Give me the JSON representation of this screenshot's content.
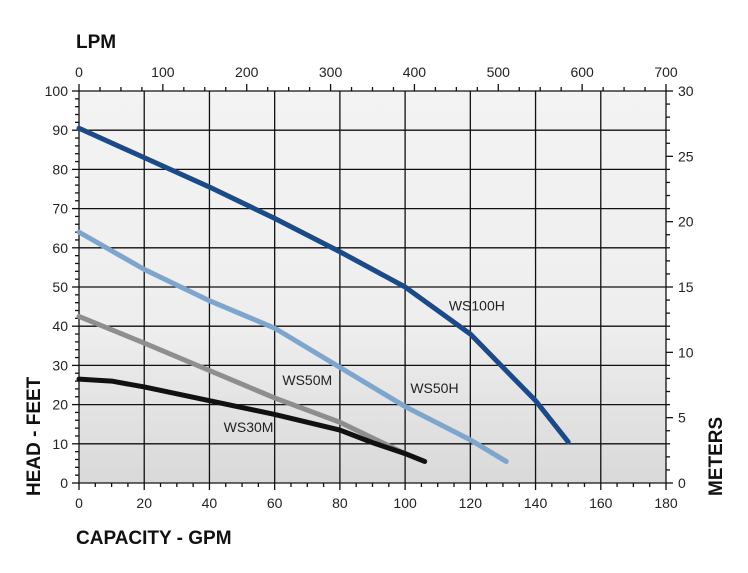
{
  "chart_data": {
    "type": "line",
    "title": "",
    "xlabel": "CAPACITY - GPM",
    "x2label": "LPM",
    "ylabel": "HEAD - FEET",
    "y2label": "METERS",
    "xlim": [
      0,
      180
    ],
    "ylim": [
      0,
      100
    ],
    "x2lim": [
      0,
      700
    ],
    "y2lim": [
      0,
      30
    ],
    "xticks": [
      "0",
      "20",
      "40",
      "60",
      "80",
      "100",
      "120",
      "140",
      "160",
      "180"
    ],
    "yticks": [
      "0",
      "10",
      "20",
      "30",
      "40",
      "50",
      "60",
      "70",
      "80",
      "90",
      "100"
    ],
    "x2ticks": [
      "0",
      "100",
      "200",
      "300",
      "400",
      "500",
      "600",
      "700"
    ],
    "y2ticks": [
      "0",
      "5",
      "10",
      "15",
      "20",
      "25",
      "30"
    ],
    "grid": true,
    "legend": "inline labels",
    "series": [
      {
        "name": "WS100H",
        "color": "#1c4a87",
        "label_at": [
          122,
          44
        ],
        "x": [
          0,
          20,
          40,
          60,
          80,
          100,
          120,
          140,
          150
        ],
        "y": [
          90.5,
          83,
          75.5,
          67.5,
          59,
          50,
          38,
          21,
          10.5
        ]
      },
      {
        "name": "WS50H",
        "color": "#7ea5cc",
        "label_at": [
          109,
          23
        ],
        "x": [
          0,
          20,
          40,
          60,
          80,
          100,
          120,
          131
        ],
        "y": [
          64,
          54.5,
          46.5,
          39.5,
          29.5,
          19.5,
          11,
          5.5
        ]
      },
      {
        "name": "WS50M",
        "color": "#8e8e8e",
        "label_at": [
          70,
          25
        ],
        "x": [
          0,
          20,
          40,
          60,
          80,
          100,
          106
        ],
        "y": [
          42.5,
          35.7,
          28.7,
          21.7,
          15.5,
          7.5,
          5.5
        ]
      },
      {
        "name": "WS30M",
        "color": "#111111",
        "label_at": [
          52,
          13
        ],
        "x": [
          0,
          10,
          20,
          40,
          60,
          80,
          90,
          100,
          106
        ],
        "y": [
          26.5,
          26,
          24.5,
          21,
          17.5,
          13.5,
          10.3,
          7.5,
          5.5
        ]
      }
    ]
  }
}
